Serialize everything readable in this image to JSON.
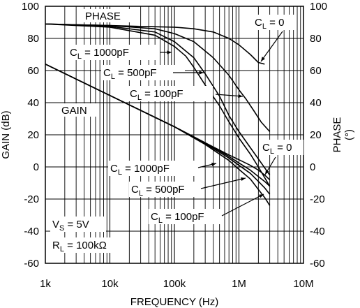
{
  "chart_data": {
    "type": "line",
    "xlabel": "FREQUENCY (Hz)",
    "ylabel_left": "GAIN (dB)",
    "ylabel_right": "PHASE",
    "ylabel_right_unit": "(°)",
    "x_scale": "log",
    "xlim": [
      1000,
      10000000
    ],
    "ylim_left": [
      -60,
      100
    ],
    "ylim_right": [
      -60,
      100
    ],
    "grid": true,
    "x_ticks": [
      {
        "value": 1000,
        "label": "1k"
      },
      {
        "value": 10000,
        "label": "10k"
      },
      {
        "value": 100000,
        "label": "100k"
      },
      {
        "value": 1000000,
        "label": "1M"
      },
      {
        "value": 10000000,
        "label": "10M"
      }
    ],
    "y_ticks_left": [
      {
        "value": 100,
        "label": "100"
      },
      {
        "value": 80,
        "label": "80"
      },
      {
        "value": 60,
        "label": "60"
      },
      {
        "value": 40,
        "label": "40"
      },
      {
        "value": 20,
        "label": "20"
      },
      {
        "value": 0,
        "label": "0"
      },
      {
        "value": -20,
        "label": "-20"
      },
      {
        "value": -40,
        "label": "-40"
      },
      {
        "value": -60,
        "label": "-60"
      }
    ],
    "y_ticks_right": [
      {
        "value": 100,
        "label": "100"
      },
      {
        "value": 80,
        "label": "80"
      },
      {
        "value": 60,
        "label": "60"
      },
      {
        "value": 40,
        "label": "40"
      },
      {
        "value": 20,
        "label": "20"
      },
      {
        "value": 0,
        "label": "0"
      },
      {
        "value": -20,
        "label": "-20"
      },
      {
        "value": -40,
        "label": "-40"
      },
      {
        "value": -60,
        "label": "-60"
      }
    ],
    "series": [
      {
        "group": "phase",
        "x": [
          1000,
          10000,
          30000,
          100000,
          200000,
          400000,
          700000,
          1000000,
          1500000,
          2000000,
          2500000
        ],
        "y": [
          89,
          88,
          87.5,
          87,
          86,
          84,
          80,
          76,
          70,
          65,
          64
        ]
      },
      {
        "group": "phase",
        "x": [
          1000,
          10000,
          50000,
          100000,
          200000,
          400000,
          700000,
          1000000,
          1300000,
          1700000,
          2200000,
          3000000
        ],
        "y": [
          89,
          88,
          86,
          83,
          78,
          68,
          57,
          48,
          42,
          35,
          28,
          22
        ]
      },
      {
        "group": "phase",
        "x": [
          1000,
          10000,
          50000,
          100000,
          200000,
          300000,
          500000,
          700000,
          1000000,
          1500000,
          2000000,
          3000000
        ],
        "y": [
          89,
          87.5,
          84,
          78,
          68,
          58,
          44,
          32,
          22,
          12,
          5,
          -5
        ]
      },
      {
        "group": "phase",
        "x": [
          1000,
          10000,
          50000,
          100000,
          150000,
          200000,
          300000,
          500000,
          700000,
          1000000,
          1500000,
          2000000,
          3000000
        ],
        "y": [
          89,
          87,
          82,
          75,
          69,
          62,
          51,
          38,
          28,
          18,
          8,
          0,
          -12
        ]
      },
      {
        "group": "gain",
        "x": [
          1000,
          10000,
          100000,
          300000,
          700000,
          1000000,
          1500000,
          2000000,
          2500000,
          3000000
        ],
        "y": [
          64,
          44.5,
          25,
          15,
          7.5,
          4.5,
          1,
          -2,
          -5,
          -8
        ]
      },
      {
        "group": "gain",
        "x": [
          1000,
          10000,
          100000,
          300000,
          700000,
          1000000,
          1500000,
          2000000,
          2500000,
          3000000
        ],
        "y": [
          64,
          44.5,
          25,
          15,
          6.5,
          2.5,
          -2,
          -6,
          -9,
          -12
        ]
      },
      {
        "group": "gain",
        "x": [
          1000,
          10000,
          100000,
          300000,
          700000,
          1000000,
          1500000,
          2000000,
          2500000,
          3000000
        ],
        "y": [
          64,
          44.5,
          25,
          14.5,
          5.5,
          1,
          -4,
          -9,
          -13,
          -17
        ]
      },
      {
        "group": "gain",
        "x": [
          1000,
          10000,
          100000,
          300000,
          700000,
          1000000,
          1500000,
          2000000,
          2500000,
          3000000
        ],
        "y": [
          64,
          44.5,
          25,
          14,
          4,
          -1.5,
          -7.5,
          -14,
          -19,
          -24
        ]
      }
    ],
    "annotations": {
      "phase_label": "PHASE",
      "gain_label": "GAIN",
      "phase_cl_0": {
        "main": "C",
        "sub": "L",
        "value": " = 0"
      },
      "phase_cl_1000": {
        "main": "C",
        "sub": "L",
        "value": " = 1000pF"
      },
      "phase_cl_500": {
        "main": "C",
        "sub": "L",
        "value": " = 500pF"
      },
      "phase_cl_100": {
        "main": "C",
        "sub": "L",
        "value": " = 100pF"
      },
      "gain_cl_0": {
        "main": "C",
        "sub": "L",
        "value": " = 0"
      },
      "gain_cl_1000": {
        "main": "C",
        "sub": "L",
        "value": " = 1000pF"
      },
      "gain_cl_500": {
        "main": "C",
        "sub": "L",
        "value": " = 500pF"
      },
      "gain_cl_100": {
        "main": "C",
        "sub": "L",
        "value": " = 100pF"
      },
      "vs": {
        "main": "V",
        "sub": "S",
        "value": " = 5V"
      },
      "rl": {
        "main": "R",
        "sub": "L",
        "value": " = 100kΩ"
      }
    }
  }
}
